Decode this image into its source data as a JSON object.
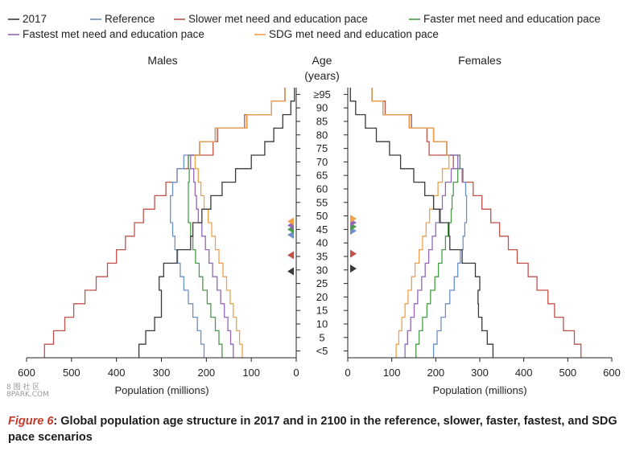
{
  "chart_data": {
    "type": "line",
    "subtype": "population-pyramid (step lines)",
    "legend": {
      "placement": "top",
      "entries": [
        {
          "name": "2017",
          "color": "#3a3a3a"
        },
        {
          "name": "Reference",
          "color": "#6d8fc4"
        },
        {
          "name": "Slower met need and education pace",
          "color": "#c0524a"
        },
        {
          "name": "Faster met need and education pace",
          "color": "#4c9a4c"
        },
        {
          "name": "Fastest met need and education pace",
          "color": "#9368b7"
        },
        {
          "name": "SDG met need and education pace",
          "color": "#f0a04b"
        }
      ]
    },
    "age_axis": {
      "title_line1": "Age",
      "title_line2": "(years)",
      "tick_labels": [
        "≥95",
        "90",
        "85",
        "80",
        "75",
        "70",
        "65",
        "60",
        "55",
        "50",
        "45",
        "40",
        "35",
        "30",
        "25",
        "20",
        "15",
        "10",
        "5",
        "<5"
      ]
    },
    "panels": {
      "males_title": "Males",
      "females_title": "Females"
    },
    "x_axis": {
      "label": "Population (millions)",
      "ticks_males": [
        "600",
        "500",
        "400",
        "300",
        "200",
        "100",
        "0"
      ],
      "ticks_females": [
        "0",
        "100",
        "200",
        "300",
        "400",
        "500",
        "600"
      ],
      "xlim": [
        0,
        600
      ]
    },
    "age_groups": [
      "<5",
      "5",
      "10",
      "15",
      "20",
      "25",
      "30",
      "35",
      "40",
      "45",
      "50",
      "55",
      "60",
      "65",
      "70",
      "75",
      "80",
      "85",
      "90",
      "≥95"
    ],
    "series": [
      {
        "name": "2017",
        "color": "#3a3a3a",
        "males": [
          350,
          335,
          315,
          300,
          300,
          305,
          295,
          265,
          235,
          230,
          210,
          190,
          165,
          135,
          100,
          70,
          50,
          30,
          12,
          4
        ],
        "females": [
          330,
          317,
          305,
          297,
          296,
          300,
          290,
          260,
          232,
          230,
          210,
          195,
          175,
          150,
          120,
          95,
          65,
          40,
          18,
          6
        ]
      },
      {
        "name": "Reference",
        "color": "#6d8fc4",
        "males": [
          205,
          212,
          220,
          230,
          240,
          250,
          258,
          264,
          270,
          275,
          280,
          280,
          275,
          265,
          250,
          215,
          180,
          110,
          55,
          25
        ],
        "females": [
          195,
          203,
          212,
          222,
          232,
          242,
          250,
          256,
          262,
          266,
          270,
          270,
          268,
          262,
          255,
          225,
          195,
          140,
          80,
          55
        ]
      },
      {
        "name": "Slower met need and education pace",
        "color": "#c0524a",
        "males": [
          560,
          540,
          515,
          495,
          470,
          445,
          420,
          400,
          380,
          360,
          340,
          315,
          290,
          265,
          240,
          185,
          175,
          115,
          55,
          25
        ],
        "females": [
          530,
          515,
          490,
          470,
          455,
          430,
          410,
          385,
          365,
          345,
          325,
          305,
          285,
          260,
          240,
          185,
          180,
          145,
          85,
          55
        ]
      },
      {
        "name": "Faster met need and education pace",
        "color": "#4c9a4c",
        "males": [
          165,
          172,
          180,
          190,
          198,
          208,
          216,
          224,
          230,
          235,
          240,
          240,
          240,
          238,
          240,
          215,
          180,
          110,
          55,
          25
        ],
        "females": [
          155,
          162,
          170,
          180,
          188,
          198,
          206,
          214,
          222,
          228,
          235,
          237,
          240,
          250,
          255,
          225,
          195,
          140,
          80,
          55
        ]
      },
      {
        "name": "Fastest met need and education pace",
        "color": "#9368b7",
        "males": [
          140,
          146,
          152,
          160,
          168,
          176,
          186,
          194,
          202,
          210,
          218,
          222,
          225,
          228,
          235,
          215,
          180,
          110,
          55,
          25
        ],
        "females": [
          130,
          136,
          143,
          151,
          159,
          168,
          176,
          184,
          192,
          200,
          208,
          215,
          222,
          235,
          250,
          225,
          195,
          140,
          80,
          55
        ]
      },
      {
        "name": "SDG met need and education pace",
        "color": "#f0a04b",
        "males": [
          120,
          126,
          133,
          140,
          147,
          155,
          163,
          172,
          180,
          188,
          196,
          205,
          212,
          218,
          225,
          215,
          180,
          110,
          55,
          25
        ],
        "females": [
          110,
          116,
          123,
          130,
          137,
          145,
          153,
          162,
          170,
          178,
          186,
          195,
          205,
          215,
          230,
          225,
          195,
          140,
          80,
          55
        ]
      }
    ],
    "median_age_markers": {
      "males": [
        {
          "series": "2017",
          "age": 32,
          "color": "#3a3a3a"
        },
        {
          "series": "Slower met need and education pace",
          "age": 38,
          "color": "#c0524a"
        },
        {
          "series": "Reference",
          "age": 45.5,
          "color": "#6d8fc4"
        },
        {
          "series": "Faster met need and education pace",
          "age": 47.5,
          "color": "#4c9a4c"
        },
        {
          "series": "Fastest met need and education pace",
          "age": 49,
          "color": "#9368b7"
        },
        {
          "series": "SDG met need and education pace",
          "age": 50.5,
          "color": "#f0a04b"
        }
      ],
      "females": [
        {
          "series": "2017",
          "age": 33,
          "color": "#3a3a3a"
        },
        {
          "series": "Slower met need and education pace",
          "age": 38.5,
          "color": "#c0524a"
        },
        {
          "series": "Reference",
          "age": 47,
          "color": "#6d8fc4"
        },
        {
          "series": "Faster met need and education pace",
          "age": 48.5,
          "color": "#4c9a4c"
        },
        {
          "series": "Fastest met need and education pace",
          "age": 50,
          "color": "#9368b7"
        },
        {
          "series": "SDG met need and education pace",
          "age": 51.5,
          "color": "#f0a04b"
        }
      ]
    }
  },
  "caption": {
    "label": "Figure 6",
    "text": ": Global population age structure in 2017 and in 2100 in the reference, slower, faster, fastest, and SDG pace scenarios"
  },
  "watermark": {
    "line1": "8 图 社 区",
    "line2": "8PARK.COM"
  }
}
